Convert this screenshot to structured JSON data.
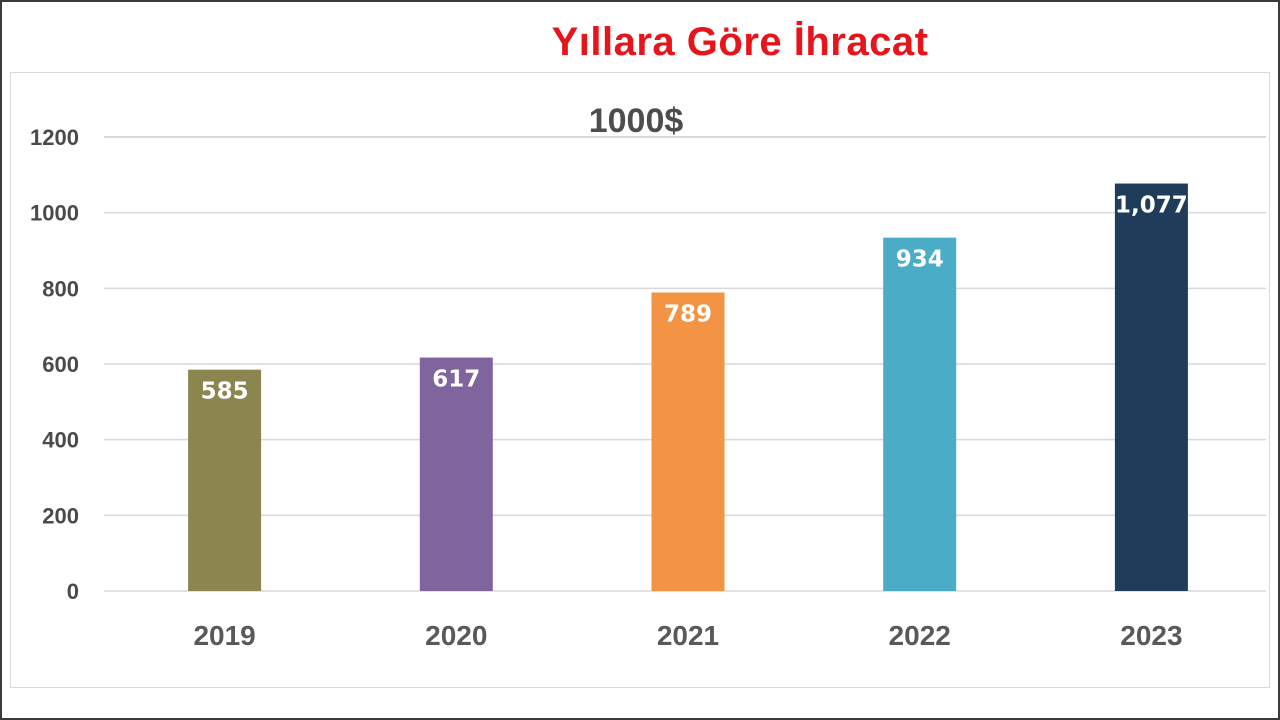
{
  "chart_data": {
    "type": "bar",
    "title": "Yıllara Göre İhracat",
    "subtitle": "1000$",
    "categories": [
      "2019",
      "2020",
      "2021",
      "2022",
      "2023"
    ],
    "values": [
      585,
      617,
      789,
      934,
      1077
    ],
    "data_labels": [
      "585",
      "617",
      "789",
      "934",
      "1,077"
    ],
    "bar_colors": [
      "#8b8550",
      "#7f649e",
      "#f39445",
      "#4aacc6",
      "#1f3c5a"
    ],
    "ylim": [
      0,
      1200
    ],
    "y_ticks": [
      "0",
      "200",
      "400",
      "600",
      "800",
      "1000",
      "1200"
    ],
    "y_tick_values": [
      0,
      200,
      400,
      600,
      800,
      1000,
      1200
    ],
    "xlabel": "",
    "ylabel": "",
    "grid": true,
    "legend": "none"
  },
  "colors": {
    "title": "#e8141c",
    "gridline": "#d9d9d9",
    "tick_text": "#4a4a4a"
  }
}
